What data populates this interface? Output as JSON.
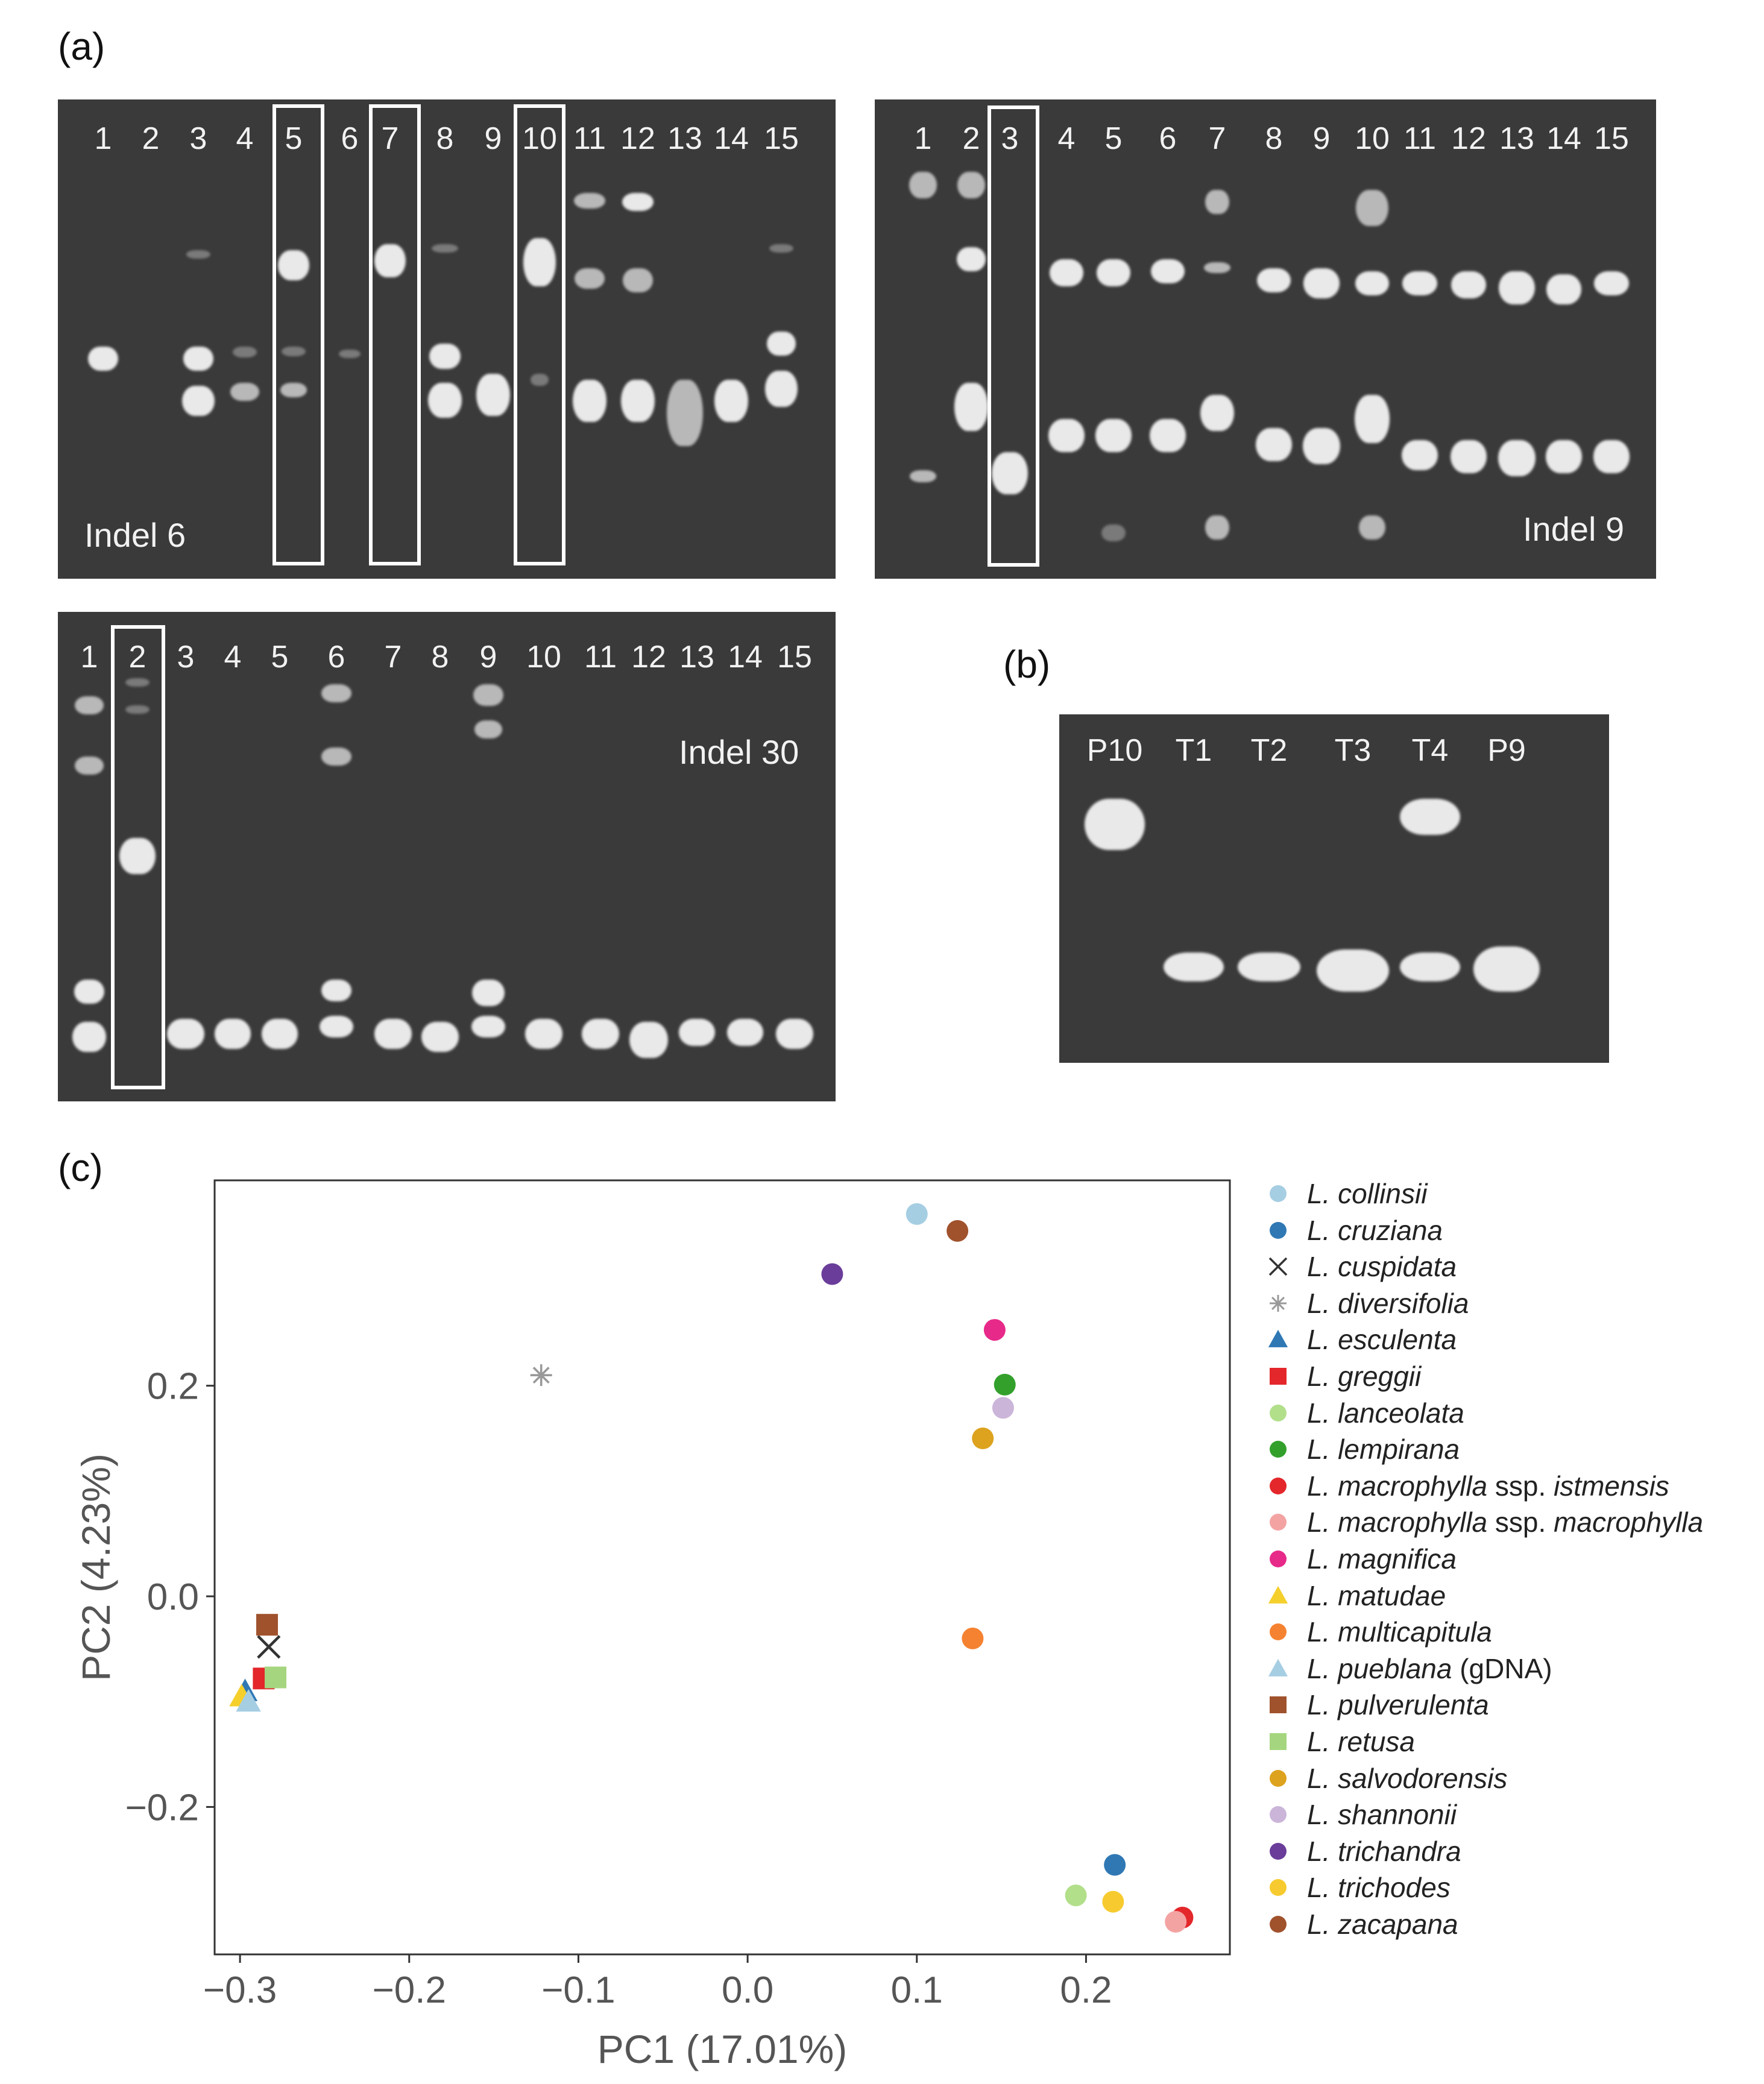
{
  "panels": {
    "a": "(a)",
    "b": "(b)",
    "c": "(c)"
  },
  "gels": {
    "indel6": {
      "title": "Indel 6",
      "lanes": [
        "1",
        "2",
        "3",
        "4",
        "5",
        "6",
        "7",
        "8",
        "9",
        "10",
        "11",
        "12",
        "13",
        "14",
        "15"
      ]
    },
    "indel9": {
      "title": "Indel 9",
      "lanes": [
        "1",
        "2",
        "3",
        "4",
        "5",
        "6",
        "7",
        "8",
        "9",
        "10",
        "11",
        "12",
        "13",
        "14",
        "15"
      ]
    },
    "indel30": {
      "title": "Indel 30",
      "lanes": [
        "1",
        "2",
        "3",
        "4",
        "5",
        "6",
        "7",
        "8",
        "9",
        "10",
        "11",
        "12",
        "13",
        "14",
        "15"
      ]
    },
    "b": {
      "lanes": [
        "P10",
        "T1",
        "T2",
        "T3",
        "T4",
        "P9"
      ]
    }
  },
  "chart_data": {
    "type": "scatter",
    "title": "",
    "xlabel": "PC1 (17.01%)",
    "ylabel": "PC2 (4.23%)",
    "xlim": [
      -0.315,
      0.285
    ],
    "ylim": [
      -0.34,
      0.395
    ],
    "xticks": [
      -0.3,
      -0.2,
      -0.1,
      0.0,
      0.1,
      0.2
    ],
    "xtick_labels": [
      "−0.3",
      "−0.2",
      "−0.1",
      "0.0",
      "0.1",
      "0.2"
    ],
    "yticks": [
      -0.2,
      0.0,
      0.2
    ],
    "ytick_labels": [
      "−0.2",
      "0.0",
      "0.2"
    ],
    "series": [
      {
        "name": "L. collinsii",
        "suffix": "",
        "marker": "circle",
        "color": "#a6cee3",
        "points": [
          [
            0.1,
            0.363
          ]
        ]
      },
      {
        "name": "L. cruziana",
        "suffix": "",
        "marker": "circle",
        "color": "#2f78b4",
        "points": [
          [
            0.217,
            -0.255
          ]
        ]
      },
      {
        "name": "L. cuspidata",
        "suffix": "",
        "marker": "x",
        "color": "#333333",
        "points": [
          [
            -0.283,
            -0.048
          ]
        ]
      },
      {
        "name": "L. diversifolia",
        "suffix": "",
        "marker": "star",
        "color": "#999999",
        "points": [
          [
            -0.122,
            0.21
          ]
        ]
      },
      {
        "name": "L. esculenta",
        "suffix": "",
        "marker": "triangle",
        "color": "#2f78b4",
        "points": [
          [
            -0.297,
            -0.09
          ]
        ]
      },
      {
        "name": "L. greggii",
        "suffix": "",
        "marker": "square",
        "color": "#e3272b",
        "points": [
          [
            -0.286,
            -0.078
          ]
        ]
      },
      {
        "name": "L. lanceolata",
        "suffix": "",
        "marker": "circle",
        "color": "#b2df8a",
        "points": [
          [
            0.194,
            -0.284
          ]
        ]
      },
      {
        "name": "L. lempirana",
        "suffix": "",
        "marker": "circle",
        "color": "#33a02c",
        "points": [
          [
            0.152,
            0.201
          ]
        ]
      },
      {
        "name": "L. macrophylla",
        "suffix": " ssp. istmensis",
        "marker": "circle",
        "color": "#e3272b",
        "points": [
          [
            0.257,
            -0.305
          ]
        ]
      },
      {
        "name": "L. macrophylla",
        "suffix": " ssp. macrophylla",
        "marker": "circle",
        "color": "#f4a3a3",
        "points": [
          [
            0.253,
            -0.309
          ]
        ]
      },
      {
        "name": "L. magnifica",
        "suffix": "",
        "marker": "circle",
        "color": "#e7298a",
        "points": [
          [
            0.146,
            0.253
          ]
        ]
      },
      {
        "name": "L. matudae",
        "suffix": "",
        "marker": "triangle",
        "color": "#f5cf2c",
        "points": [
          [
            -0.299,
            -0.095
          ]
        ]
      },
      {
        "name": "L. multicapitula",
        "suffix": "",
        "marker": "circle",
        "color": "#f58231",
        "points": [
          [
            0.133,
            -0.04
          ]
        ]
      },
      {
        "name": "L. pueblana",
        "suffix": " (gDNA)",
        "marker": "triangle",
        "color": "#a6cee3",
        "points": [
          [
            -0.295,
            -0.1
          ]
        ]
      },
      {
        "name": "L. pulverulenta",
        "suffix": "",
        "marker": "square",
        "color": "#a0522d",
        "points": [
          [
            -0.284,
            -0.027
          ]
        ]
      },
      {
        "name": "L. retusa",
        "suffix": "",
        "marker": "square",
        "color": "#a5d67f",
        "points": [
          [
            -0.279,
            -0.077
          ]
        ]
      },
      {
        "name": "L. salvodorensis",
        "suffix": "",
        "marker": "circle",
        "color": "#dda21e",
        "points": [
          [
            0.139,
            0.15
          ]
        ]
      },
      {
        "name": "L. shannonii",
        "suffix": "",
        "marker": "circle",
        "color": "#cbb5d9",
        "points": [
          [
            0.151,
            0.179
          ]
        ]
      },
      {
        "name": "L. trichandra",
        "suffix": "",
        "marker": "circle",
        "color": "#6a3d9a",
        "points": [
          [
            0.05,
            0.306
          ]
        ]
      },
      {
        "name": "L. trichodes",
        "suffix": "",
        "marker": "circle",
        "color": "#f7cb2f",
        "points": [
          [
            0.216,
            -0.29
          ]
        ]
      },
      {
        "name": "L. zacapana",
        "suffix": "",
        "marker": "circle",
        "color": "#a0522d",
        "points": [
          [
            0.124,
            0.347
          ]
        ]
      }
    ]
  }
}
